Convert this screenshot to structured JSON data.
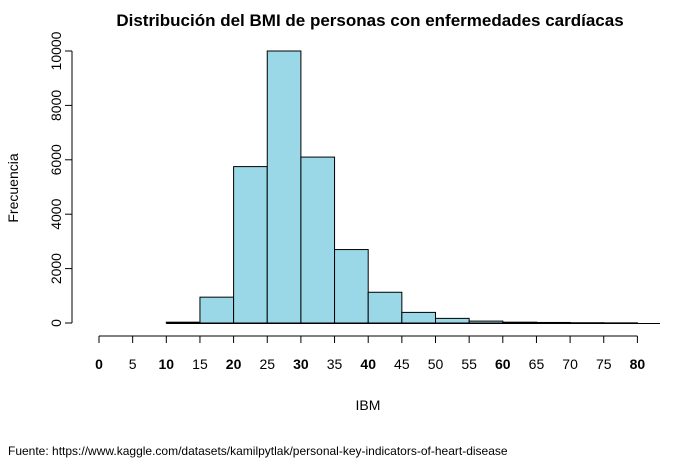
{
  "chart_data": {
    "type": "bar",
    "title": "Distribución del BMI de personas con enfermedades cardíacas",
    "xlabel": "IBM",
    "ylabel": "Frecuencia",
    "bin_edges": [
      10,
      15,
      20,
      25,
      30,
      35,
      40,
      45,
      50,
      55,
      60,
      65,
      70,
      75,
      80
    ],
    "values": [
      30,
      950,
      5750,
      10000,
      6100,
      2700,
      1130,
      390,
      170,
      70,
      30,
      20,
      10,
      5
    ],
    "xlim": [
      0,
      83
    ],
    "ylim": [
      0,
      10000
    ],
    "x_ticks": [
      "0",
      "5",
      "10",
      "15",
      "20",
      "25",
      "30",
      "35",
      "40",
      "45",
      "50",
      "55",
      "60",
      "65",
      "70",
      "75",
      "80"
    ],
    "x_ticks_bold": [
      "0",
      "10",
      "20",
      "30",
      "40",
      "60",
      "80"
    ],
    "y_ticks": [
      "0",
      "2000",
      "4000",
      "6000",
      "8000",
      "10000"
    ],
    "bar_color": "#9ad8e8",
    "grid": false,
    "source": "Fuente: https://www.kaggle.com/datasets/kamilpytlak/personal-key-indicators-of-heart-disease"
  }
}
